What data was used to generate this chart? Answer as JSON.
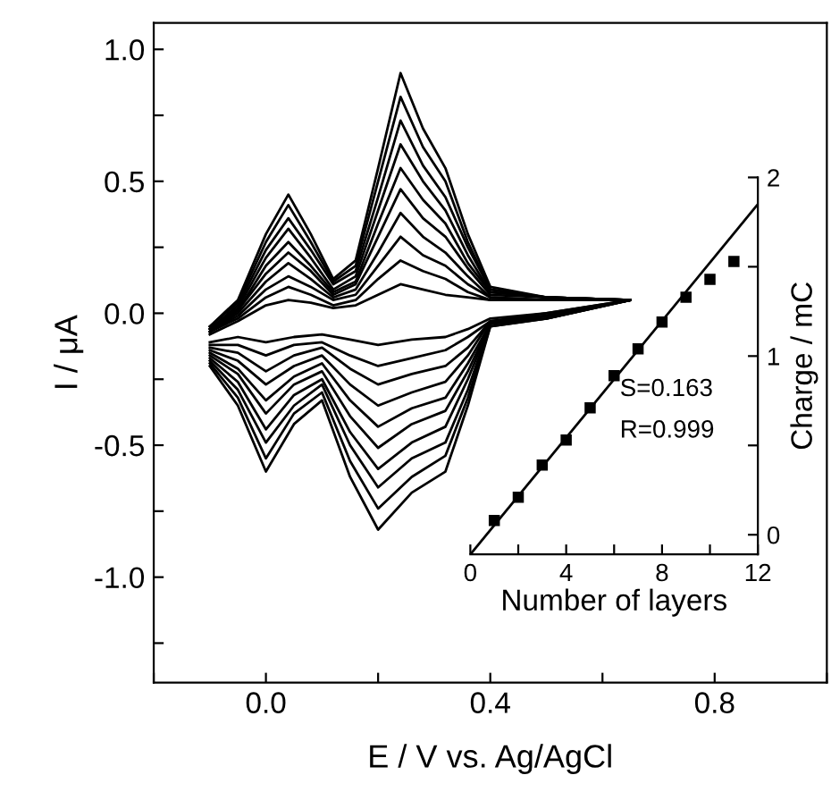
{
  "chart_data": [
    {
      "type": "line",
      "xlabel": "E / V vs. Ag/AgCl",
      "ylabel": "I / μA",
      "grid": false,
      "xlim": [
        -0.2,
        1.0
      ],
      "ylim": [
        -1.4,
        1.1
      ],
      "xticks": [
        {
          "value": -0.2,
          "label": null
        },
        {
          "value": 0.0,
          "label": "0.0"
        },
        {
          "value": 0.2,
          "label": null
        },
        {
          "value": 0.4,
          "label": "0.4"
        },
        {
          "value": 0.6,
          "label": null
        },
        {
          "value": 0.8,
          "label": "0.8"
        },
        {
          "value": 1.0,
          "label": null
        }
      ],
      "yticks": [
        {
          "value": -1.25,
          "label": null
        },
        {
          "value": -1.0,
          "label": "-1.0"
        },
        {
          "value": -0.75,
          "label": null
        },
        {
          "value": -0.5,
          "label": "-0.5"
        },
        {
          "value": -0.25,
          "label": null
        },
        {
          "value": 0.0,
          "label": "0.0"
        },
        {
          "value": 0.25,
          "label": null
        },
        {
          "value": 0.5,
          "label": "0.5"
        },
        {
          "value": 0.75,
          "label": null
        },
        {
          "value": 1.0,
          "label": "1.0"
        }
      ],
      "x": [
        -0.1,
        -0.05,
        0.0,
        0.04,
        0.08,
        0.12,
        0.16,
        0.2,
        0.24,
        0.28,
        0.32,
        0.36,
        0.4,
        0.5,
        0.65,
        0.5,
        0.4,
        0.36,
        0.32,
        0.26,
        0.2,
        0.15,
        0.1,
        0.05,
        0.0,
        -0.05,
        -0.1
      ],
      "series": [
        {
          "color": "#000000",
          "values": [
            -0.08,
            -0.03,
            0.03,
            0.05,
            0.04,
            0.02,
            0.03,
            0.07,
            0.11,
            0.09,
            0.07,
            0.06,
            0.05,
            0.05,
            0.05,
            0.0,
            -0.02,
            -0.06,
            -0.09,
            -0.1,
            -0.12,
            -0.1,
            -0.08,
            -0.09,
            -0.11,
            -0.09,
            -0.11
          ]
        },
        {
          "color": "#000000",
          "values": [
            -0.07,
            -0.02,
            0.06,
            0.1,
            0.07,
            0.03,
            0.05,
            0.13,
            0.2,
            0.16,
            0.13,
            0.08,
            0.05,
            0.05,
            0.05,
            0.0,
            -0.03,
            -0.09,
            -0.14,
            -0.17,
            -0.2,
            -0.16,
            -0.11,
            -0.12,
            -0.16,
            -0.12,
            -0.12
          ]
        },
        {
          "color": "#000000",
          "values": [
            -0.07,
            -0.01,
            0.09,
            0.14,
            0.1,
            0.05,
            0.07,
            0.18,
            0.29,
            0.22,
            0.18,
            0.11,
            0.06,
            0.05,
            0.05,
            -0.01,
            -0.03,
            -0.13,
            -0.2,
            -0.23,
            -0.27,
            -0.21,
            -0.13,
            -0.16,
            -0.22,
            -0.15,
            -0.13
          ]
        },
        {
          "color": "#000000",
          "values": [
            -0.07,
            0.0,
            0.12,
            0.19,
            0.13,
            0.06,
            0.09,
            0.23,
            0.38,
            0.29,
            0.23,
            0.14,
            0.06,
            0.05,
            0.05,
            -0.01,
            -0.03,
            -0.16,
            -0.26,
            -0.3,
            -0.35,
            -0.27,
            -0.16,
            -0.2,
            -0.27,
            -0.18,
            -0.14
          ]
        },
        {
          "color": "#000000",
          "values": [
            -0.07,
            0.01,
            0.15,
            0.23,
            0.16,
            0.07,
            0.11,
            0.29,
            0.47,
            0.36,
            0.29,
            0.17,
            0.07,
            0.06,
            0.05,
            -0.01,
            -0.04,
            -0.19,
            -0.32,
            -0.36,
            -0.43,
            -0.33,
            -0.19,
            -0.24,
            -0.33,
            -0.21,
            -0.15
          ]
        },
        {
          "color": "#000000",
          "values": [
            -0.06,
            0.01,
            0.18,
            0.27,
            0.18,
            0.08,
            0.12,
            0.34,
            0.55,
            0.43,
            0.34,
            0.19,
            0.08,
            0.06,
            0.05,
            -0.01,
            -0.04,
            -0.22,
            -0.37,
            -0.42,
            -0.51,
            -0.39,
            -0.22,
            -0.27,
            -0.38,
            -0.23,
            -0.16
          ]
        },
        {
          "color": "#000000",
          "values": [
            -0.06,
            0.02,
            0.21,
            0.32,
            0.21,
            0.09,
            0.14,
            0.39,
            0.64,
            0.5,
            0.39,
            0.22,
            0.08,
            0.06,
            0.05,
            -0.01,
            -0.04,
            -0.25,
            -0.43,
            -0.49,
            -0.59,
            -0.45,
            -0.25,
            -0.31,
            -0.44,
            -0.26,
            -0.17
          ]
        },
        {
          "color": "#000000",
          "values": [
            -0.06,
            0.03,
            0.24,
            0.36,
            0.24,
            0.11,
            0.16,
            0.44,
            0.73,
            0.56,
            0.44,
            0.25,
            0.09,
            0.06,
            0.05,
            -0.02,
            -0.04,
            -0.29,
            -0.49,
            -0.55,
            -0.66,
            -0.5,
            -0.27,
            -0.35,
            -0.49,
            -0.29,
            -0.18
          ]
        },
        {
          "color": "#000000",
          "values": [
            -0.05,
            0.04,
            0.27,
            0.41,
            0.27,
            0.12,
            0.18,
            0.5,
            0.82,
            0.63,
            0.5,
            0.27,
            0.09,
            0.06,
            0.05,
            -0.02,
            -0.05,
            -0.32,
            -0.54,
            -0.62,
            -0.74,
            -0.56,
            -0.3,
            -0.38,
            -0.55,
            -0.32,
            -0.19
          ]
        },
        {
          "color": "#000000",
          "values": [
            -0.05,
            0.05,
            0.3,
            0.45,
            0.3,
            0.13,
            0.2,
            0.55,
            0.91,
            0.7,
            0.55,
            0.3,
            0.1,
            0.06,
            0.05,
            -0.02,
            -0.05,
            -0.35,
            -0.6,
            -0.68,
            -0.82,
            -0.62,
            -0.33,
            -0.42,
            -0.6,
            -0.35,
            -0.2
          ]
        }
      ]
    },
    {
      "type": "scatter",
      "xlabel": "Number of layers",
      "y2label": "Charge / mC",
      "grid": false,
      "xlim": [
        0,
        12
      ],
      "y2lim": [
        -0.11,
        2.0
      ],
      "xticks": [
        0,
        {
          "value": 2,
          "label": null
        },
        4,
        {
          "value": 6,
          "label": null
        },
        8,
        {
          "value": 10,
          "label": null
        },
        12
      ],
      "y2ticks": [
        0,
        {
          "value": 0.5,
          "label": null
        },
        1,
        {
          "value": 1.5,
          "label": null
        },
        2
      ],
      "annotations": [
        "S=0.163",
        "R=0.999"
      ],
      "x": [
        1,
        2,
        3,
        4,
        5,
        6,
        7,
        8,
        9,
        10,
        11
      ],
      "series": [
        {
          "color": "#000000",
          "axis": "y2",
          "marker": "square",
          "values": [
            0.08,
            0.21,
            0.39,
            0.53,
            0.71,
            0.89,
            1.04,
            1.19,
            1.33,
            1.43,
            1.53
          ]
        },
        {
          "type": "line",
          "color": "#000000",
          "axis": "y2",
          "x": [
            0,
            12
          ],
          "values": [
            -0.11,
            1.85
          ]
        }
      ]
    }
  ]
}
